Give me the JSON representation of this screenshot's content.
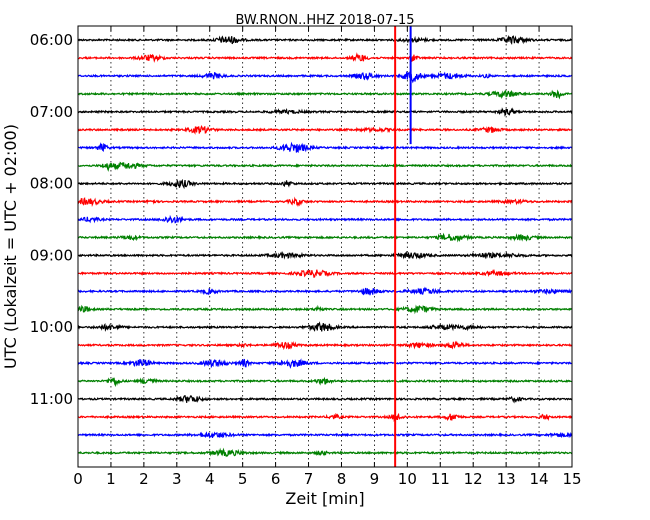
{
  "chart_data": {
    "type": "line",
    "title": "BW.RNON..HHZ 2018-07-15",
    "xlabel": "Zeit  [min]",
    "ylabel": "UTC (Lokalzeit = UTC + 02:00)",
    "xlim": [
      0,
      15
    ],
    "xticks": [
      0,
      1,
      2,
      3,
      4,
      5,
      6,
      7,
      8,
      9,
      10,
      11,
      12,
      13,
      14,
      15
    ],
    "yticks": [
      "06:00",
      "07:00",
      "08:00",
      "09:00",
      "10:00",
      "11:00"
    ],
    "grid": true,
    "trace_colors": [
      "#000000",
      "#ff0000",
      "#0000ff",
      "#008000"
    ],
    "traces_per_hour": 4,
    "trace_interval_min": 15,
    "first_trace": "06:00",
    "trace_count": 24,
    "marker_line": {
      "x": 9.63,
      "color": "#ff0000"
    },
    "blue_event_line": {
      "x": 10.1,
      "color": "#0000ff"
    }
  }
}
